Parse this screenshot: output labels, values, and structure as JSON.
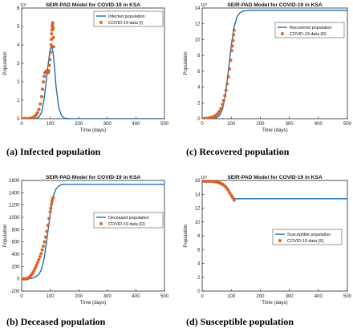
{
  "colors": {
    "model": "#1f6fb0",
    "data": "#d95f1e",
    "axis": "#262626",
    "grid": "#e3e3e3"
  },
  "panels": [
    {
      "caption": "(a)  Infected population",
      "chart_data": {
        "type": "line",
        "title": "SEIR-PAD Model for COVID-19 in KSA",
        "xlabel": "Time (days)",
        "ylabel": "Population",
        "exponent": "10⁴",
        "xlim": [
          0,
          500
        ],
        "ylim": [
          0,
          6
        ],
        "xticks": [
          0,
          100,
          200,
          300,
          400,
          500
        ],
        "yticks": [
          0,
          1,
          2,
          3,
          4,
          5,
          6
        ],
        "ytick_labels": [
          "0",
          "1",
          "2",
          "3",
          "4",
          "5",
          "6"
        ],
        "grid": false,
        "legend_position": "top-right",
        "series": [
          {
            "name": "Infected population",
            "kind": "line",
            "x": [
              0,
              40,
              50,
              60,
              70,
              80,
              90,
              100,
              105,
              110,
              115,
              120,
              130,
              140,
              150,
              170,
              200,
              300,
              400,
              500
            ],
            "y": [
              0,
              0,
              0.02,
              0.08,
              0.35,
              1.2,
              2.6,
              3.8,
              3.9,
              3.6,
              2.8,
              1.8,
              0.6,
              0.15,
              0.03,
              0,
              0,
              0,
              0,
              0
            ]
          },
          {
            "name": "COVID-19 data (I)",
            "kind": "marker",
            "x": [
              0,
              5,
              10,
              15,
              20,
              25,
              30,
              35,
              40,
              45,
              50,
              55,
              60,
              65,
              70,
              73,
              76,
              79,
              82,
              85,
              88,
              91,
              93,
              95,
              97,
              99,
              101,
              103,
              104,
              105,
              106,
              107,
              108,
              109,
              110,
              111,
              112
            ],
            "y": [
              0,
              0,
              0,
              0,
              0,
              0,
              0.01,
              0.03,
              0.06,
              0.12,
              0.2,
              0.32,
              0.5,
              0.8,
              1.2,
              1.6,
              2.0,
              2.3,
              2.5,
              2.55,
              2.6,
              2.55,
              2.5,
              2.6,
              2.9,
              3.2,
              3.6,
              4.0,
              4.3,
              4.6,
              4.8,
              5.0,
              5.1,
              5.2,
              4.9,
              4.4,
              3.9
            ]
          }
        ]
      }
    },
    {
      "caption": "(c)  Recovered population",
      "chart_data": {
        "type": "line",
        "title": "SEIR-PAD Model for COVID-19 in KSA",
        "xlabel": "Time (days)",
        "ylabel": "Population",
        "exponent": "10⁴",
        "xlim": [
          0,
          500
        ],
        "ylim": [
          0,
          14
        ],
        "xticks": [
          0,
          100,
          200,
          300,
          400,
          500
        ],
        "yticks": [
          0,
          2,
          4,
          6,
          8,
          10,
          12,
          14
        ],
        "ytick_labels": [
          "0",
          "2",
          "4",
          "6",
          "8",
          "10",
          "12",
          "14"
        ],
        "grid": false,
        "legend_position": "bottom-right",
        "series": [
          {
            "name": "Recovered population",
            "kind": "line",
            "x": [
              0,
              40,
              50,
              60,
              70,
              80,
              90,
              100,
              110,
              120,
              130,
              140,
              150,
              160,
              180,
              200,
              300,
              400,
              500
            ],
            "y": [
              0,
              0.05,
              0.15,
              0.4,
              1.2,
              3.0,
              6.0,
              9.2,
              11.6,
              12.9,
              13.4,
              13.6,
              13.65,
              13.7,
              13.7,
              13.7,
              13.7,
              13.7,
              13.7
            ]
          },
          {
            "name": "COVID-19 data (R)",
            "kind": "marker",
            "x": [
              0,
              5,
              10,
              15,
              20,
              25,
              30,
              35,
              40,
              45,
              50,
              55,
              60,
              65,
              70,
              74,
              78,
              82,
              86,
              90,
              94,
              98,
              102,
              104,
              106,
              108,
              110
            ],
            "y": [
              0,
              0,
              0,
              0.02,
              0.05,
              0.08,
              0.12,
              0.18,
              0.25,
              0.35,
              0.5,
              0.7,
              0.95,
              1.3,
              1.8,
              2.3,
              2.9,
              3.6,
              4.4,
              5.3,
              6.3,
              7.4,
              8.6,
              9.2,
              9.9,
              10.6,
              11.2
            ]
          }
        ]
      }
    },
    {
      "caption": "(b)  Deceased population",
      "chart_data": {
        "type": "line",
        "title": "SEIR-PAD Model for COVID-19 in KSA",
        "xlabel": "Time (days)",
        "ylabel": "Population",
        "exponent": "",
        "xlim": [
          0,
          500
        ],
        "ylim": [
          -200,
          1600
        ],
        "xticks": [
          0,
          100,
          200,
          300,
          400,
          500
        ],
        "yticks": [
          -200,
          0,
          200,
          400,
          600,
          800,
          1000,
          1200,
          1400,
          1600
        ],
        "ytick_labels": [
          "-200",
          "0",
          "200",
          "400",
          "600",
          "800",
          "1000",
          "1200",
          "1400",
          "1600"
        ],
        "grid": false,
        "legend_position": "middle-right",
        "series": [
          {
            "name": "Deceased population",
            "kind": "line",
            "x": [
              0,
              20,
              30,
              40,
              50,
              60,
              70,
              80,
              90,
              100,
              110,
              120,
              130,
              140,
              150,
              170,
              200,
              300,
              400,
              500
            ],
            "y": [
              0,
              0,
              5,
              15,
              35,
              70,
              160,
              360,
              700,
              1050,
              1330,
              1460,
              1510,
              1530,
              1535,
              1535,
              1535,
              1535,
              1535,
              1535
            ]
          },
          {
            "name": "COVID-19 data (D)",
            "kind": "marker",
            "x": [
              0,
              4,
              8,
              12,
              16,
              20,
              24,
              28,
              32,
              36,
              40,
              44,
              48,
              52,
              56,
              60,
              64,
              68,
              72,
              76,
              80,
              84,
              88,
              92,
              96,
              100,
              102,
              104,
              106,
              108,
              110
            ],
            "y": [
              0,
              0,
              0,
              0,
              0,
              5,
              15,
              30,
              50,
              75,
              105,
              140,
              180,
              220,
              265,
              310,
              360,
              410,
              470,
              530,
              600,
              680,
              770,
              870,
              980,
              1090,
              1150,
              1210,
              1260,
              1300,
              1320
            ]
          }
        ]
      }
    },
    {
      "caption": "(d)  Susceptible population",
      "chart_data": {
        "type": "line",
        "title": "SEIR-PAD Model for COVID-19 in KSA",
        "xlabel": "Time (days)",
        "ylabel": "Population",
        "exponent": "10⁵",
        "xlim": [
          0,
          500
        ],
        "ylim": [
          0,
          16
        ],
        "xticks": [
          0,
          100,
          200,
          300,
          400,
          500
        ],
        "yticks": [
          0,
          2,
          4,
          6,
          8,
          10,
          12,
          14,
          16
        ],
        "ytick_labels": [
          "0",
          "2",
          "4",
          "6",
          "8",
          "10",
          "12",
          "14",
          "16"
        ],
        "grid": false,
        "legend_position": "lower-right",
        "series": [
          {
            "name": "Susceptible population",
            "kind": "line",
            "x": [
              0,
              30,
              50,
              60,
              70,
              80,
              90,
              100,
              110,
              115,
              120,
              140,
              200,
              300,
              400,
              500
            ],
            "y": [
              15.9,
              15.9,
              15.85,
              15.75,
              15.55,
              15.2,
              14.6,
              13.9,
              13.4,
              13.35,
              13.35,
              13.35,
              13.35,
              13.35,
              13.35,
              13.35
            ]
          },
          {
            "name": "COVID-19 data (S)",
            "kind": "marker",
            "x": [
              0,
              5,
              10,
              15,
              20,
              25,
              30,
              35,
              40,
              45,
              50,
              55,
              60,
              65,
              70,
              75,
              80,
              85,
              90,
              95,
              100,
              105,
              110
            ],
            "y": [
              0,
              15.9,
              15.9,
              15.9,
              15.9,
              15.9,
              15.9,
              15.88,
              15.85,
              15.82,
              15.78,
              15.72,
              15.65,
              15.55,
              15.45,
              15.3,
              15.1,
              14.85,
              14.55,
              14.2,
              13.85,
              13.5,
              13.15
            ]
          }
        ]
      }
    }
  ]
}
